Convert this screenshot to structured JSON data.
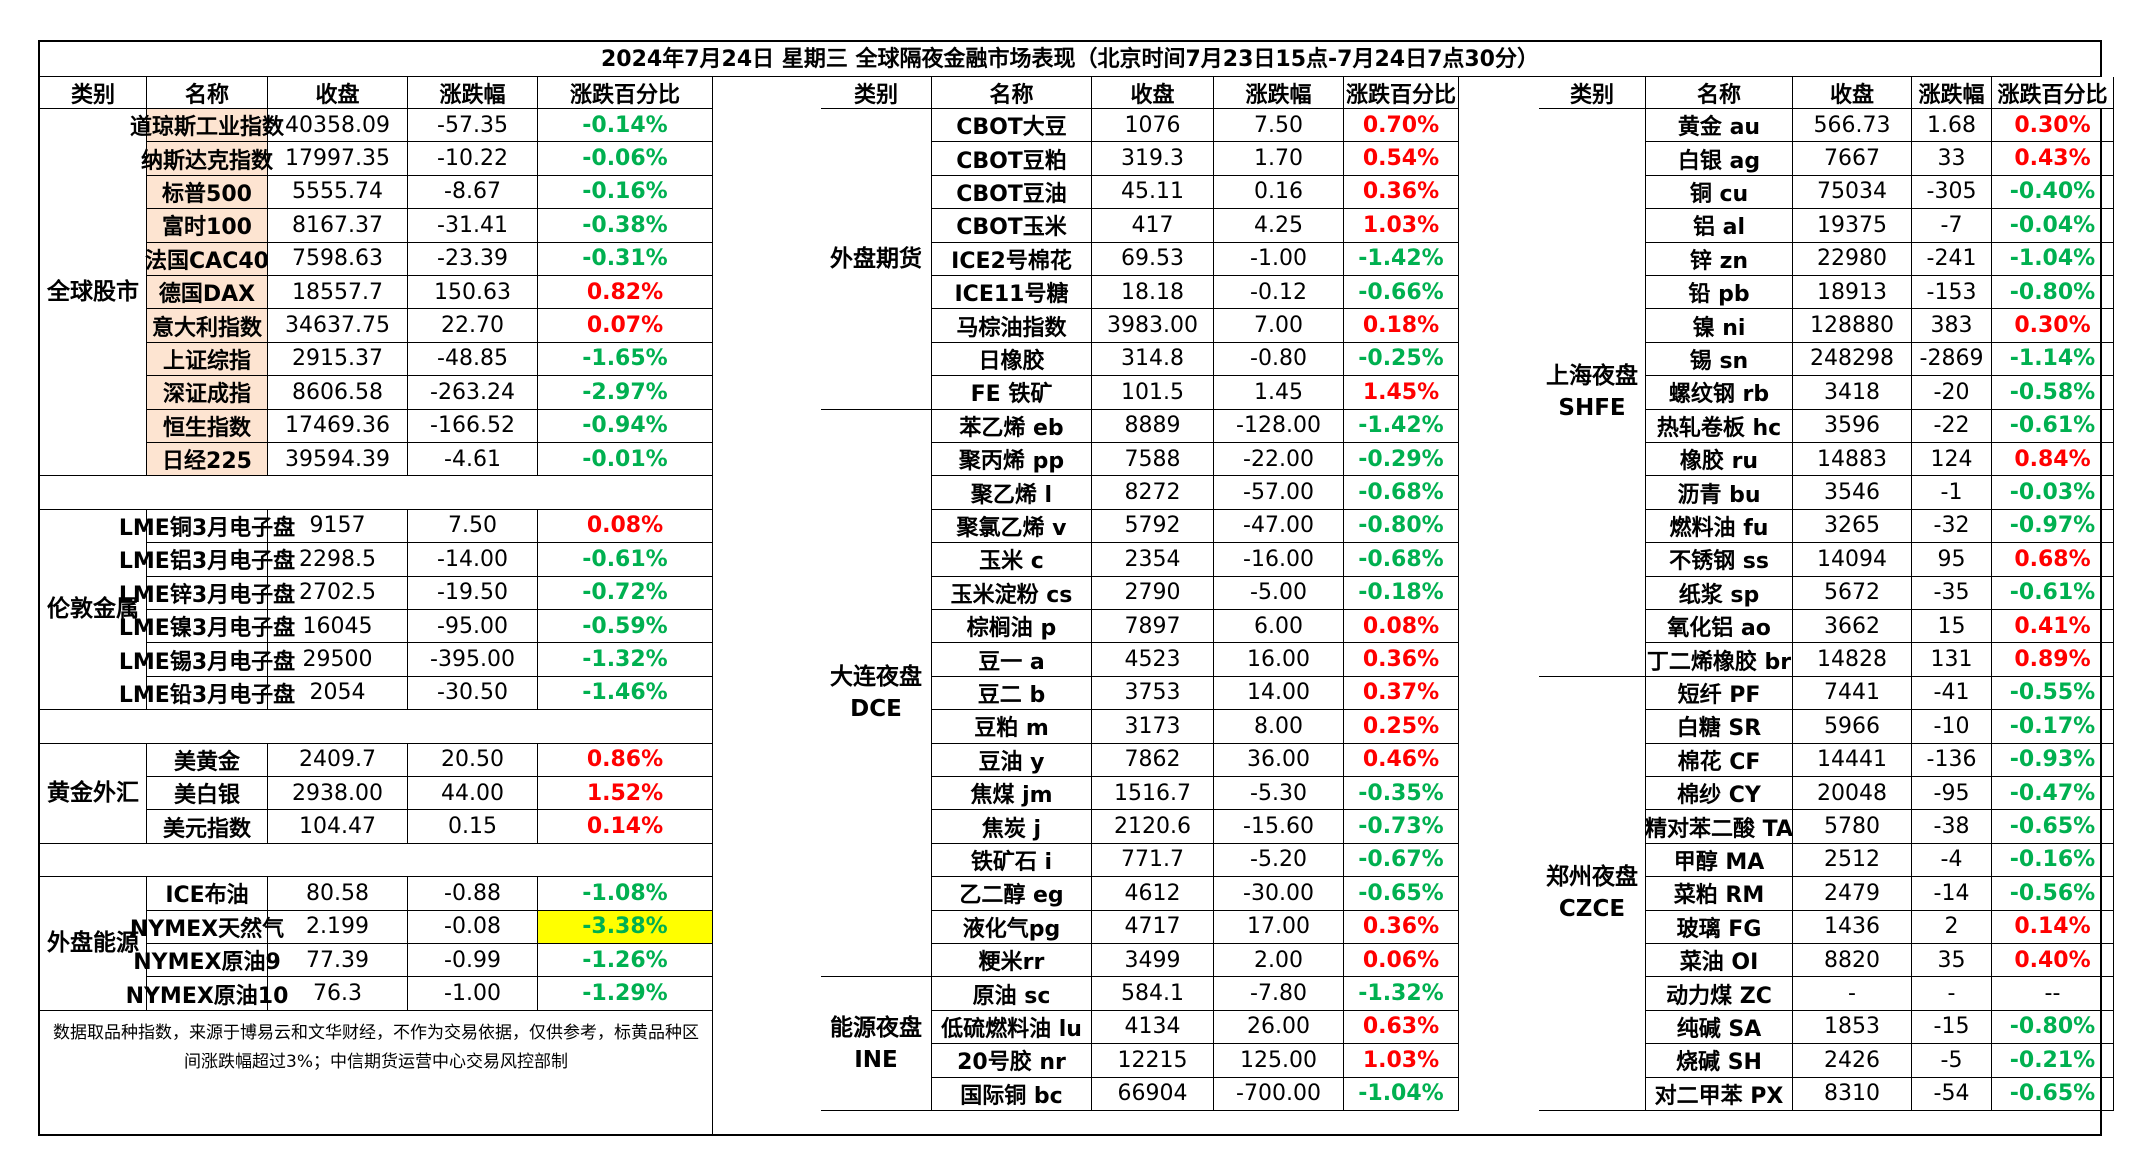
{
  "title": "2024年7月24日 星期三 全球隔夜金融市场表现（北京时间7月23日15点-7月24日7点30分）",
  "headers": [
    "类别",
    "名称",
    "收盘",
    "涨跌幅",
    "涨跌百分比"
  ],
  "colors": {
    "up": "#ff0000",
    "down": "#00b050",
    "highlight": "#ffff00",
    "name_bg": "#fde4d1"
  },
  "note": "数据取品种指数，来源于博易云和文华财经，不作为交易依据，仅供参考，标黄品种区间涨跌幅超过3%；中信期货运营中心交易风控部制",
  "sections": [
    {
      "panel": 0,
      "category": [
        "全球股市"
      ],
      "peach": true,
      "rows": [
        [
          "道琼斯工业指数",
          "40358.09",
          "-57.35",
          "-0.14%"
        ],
        [
          "纳斯达克指数",
          "17997.35",
          "-10.22",
          "-0.06%"
        ],
        [
          "标普500",
          "5555.74",
          "-8.67",
          "-0.16%"
        ],
        [
          "富时100",
          "8167.37",
          "-31.41",
          "-0.38%"
        ],
        [
          "法国CAC40",
          "7598.63",
          "-23.39",
          "-0.31%"
        ],
        [
          "德国DAX",
          "18557.7",
          "150.63",
          "0.82%"
        ],
        [
          "意大利指数",
          "34637.75",
          "22.70",
          "0.07%"
        ],
        [
          "上证综指",
          "2915.37",
          "-48.85",
          "-1.65%"
        ],
        [
          "深证成指",
          "8606.58",
          "-263.24",
          "-2.97%"
        ],
        [
          "恒生指数",
          "17469.36",
          "-166.52",
          "-0.94%"
        ],
        [
          "日经225",
          "39594.39",
          "-4.61",
          "-0.01%"
        ]
      ]
    },
    {
      "panel": 0,
      "category": [
        "伦敦金属"
      ],
      "rows": [
        [
          "LME铜3月电子盘",
          "9157",
          "7.50",
          "0.08%"
        ],
        [
          "LME铝3月电子盘",
          "2298.5",
          "-14.00",
          "-0.61%"
        ],
        [
          "LME锌3月电子盘",
          "2702.5",
          "-19.50",
          "-0.72%"
        ],
        [
          "LME镍3月电子盘",
          "16045",
          "-95.00",
          "-0.59%"
        ],
        [
          "LME锡3月电子盘",
          "29500",
          "-395.00",
          "-1.32%"
        ],
        [
          "LME铅3月电子盘",
          "2054",
          "-30.50",
          "-1.46%"
        ]
      ]
    },
    {
      "panel": 0,
      "category": [
        "黄金外汇"
      ],
      "rows": [
        [
          "美黄金",
          "2409.7",
          "20.50",
          "0.86%"
        ],
        [
          "美白银",
          "2938.00",
          "44.00",
          "1.52%"
        ],
        [
          "美元指数",
          "104.47",
          "0.15",
          "0.14%"
        ]
      ]
    },
    {
      "panel": 0,
      "category": [
        "外盘能源"
      ],
      "rows": [
        [
          "ICE布油",
          "80.58",
          "-0.88",
          "-1.08%"
        ],
        [
          "NYMEX天然气",
          "2.199",
          "-0.08",
          "-3.38%"
        ],
        [
          "NYMEX原油9",
          "77.39",
          "-0.99",
          "-1.26%"
        ],
        [
          "NYMEX原油10",
          "76.3",
          "-1.00",
          "-1.29%"
        ]
      ]
    },
    {
      "panel": 1,
      "category": [
        "外盘期货"
      ],
      "rows": [
        [
          "CBOT大豆",
          "1076",
          "7.50",
          "0.70%"
        ],
        [
          "CBOT豆粕",
          "319.3",
          "1.70",
          "0.54%"
        ],
        [
          "CBOT豆油",
          "45.11",
          "0.16",
          "0.36%"
        ],
        [
          "CBOT玉米",
          "417",
          "4.25",
          "1.03%"
        ],
        [
          "ICE2号棉花",
          "69.53",
          "-1.00",
          "-1.42%"
        ],
        [
          "ICE11号糖",
          "18.18",
          "-0.12",
          "-0.66%"
        ],
        [
          "马棕油指数",
          "3983.00",
          "7.00",
          "0.18%"
        ],
        [
          "日橡胶",
          "314.8",
          "-0.80",
          "-0.25%"
        ],
        [
          "FE 铁矿",
          "101.5",
          "1.45",
          "1.45%"
        ]
      ]
    },
    {
      "panel": 1,
      "category": [
        "大连夜盘",
        "DCE"
      ],
      "rows": [
        [
          "苯乙烯 eb",
          "8889",
          "-128.00",
          "-1.42%"
        ],
        [
          "聚丙烯 pp",
          "7588",
          "-22.00",
          "-0.29%"
        ],
        [
          "聚乙烯 l",
          "8272",
          "-57.00",
          "-0.68%"
        ],
        [
          "聚氯乙烯 v",
          "5792",
          "-47.00",
          "-0.80%"
        ],
        [
          "玉米 c",
          "2354",
          "-16.00",
          "-0.68%"
        ],
        [
          "玉米淀粉 cs",
          "2790",
          "-5.00",
          "-0.18%"
        ],
        [
          "棕榈油 p",
          "7897",
          "6.00",
          "0.08%"
        ],
        [
          "豆一 a",
          "4523",
          "16.00",
          "0.36%"
        ],
        [
          "豆二 b",
          "3753",
          "14.00",
          "0.37%"
        ],
        [
          "豆粕 m",
          "3173",
          "8.00",
          "0.25%"
        ],
        [
          "豆油 y",
          "7862",
          "36.00",
          "0.46%"
        ],
        [
          "焦煤 jm",
          "1516.7",
          "-5.30",
          "-0.35%"
        ],
        [
          "焦炭 j",
          "2120.6",
          "-15.60",
          "-0.73%"
        ],
        [
          "铁矿石 i",
          "771.7",
          "-5.20",
          "-0.67%"
        ],
        [
          "乙二醇 eg",
          "4612",
          "-30.00",
          "-0.65%"
        ],
        [
          "液化气pg",
          "4717",
          "17.00",
          "0.36%"
        ],
        [
          "粳米rr",
          "3499",
          "2.00",
          "0.06%"
        ]
      ]
    },
    {
      "panel": 1,
      "category": [
        "能源夜盘",
        "INE"
      ],
      "rows": [
        [
          "原油 sc",
          "584.1",
          "-7.80",
          "-1.32%"
        ],
        [
          "低硫燃料油 lu",
          "4134",
          "26.00",
          "0.63%"
        ],
        [
          "20号胶 nr",
          "12215",
          "125.00",
          "1.03%"
        ],
        [
          "国际铜 bc",
          "66904",
          "-700.00",
          "-1.04%"
        ]
      ]
    },
    {
      "panel": 2,
      "category": [
        "上海夜盘",
        "SHFE"
      ],
      "rows": [
        [
          "黄金 au",
          "566.73",
          "1.68",
          "0.30%"
        ],
        [
          "白银 ag",
          "7667",
          "33",
          "0.43%"
        ],
        [
          "铜 cu",
          "75034",
          "-305",
          "-0.40%"
        ],
        [
          "铝 al",
          "19375",
          "-7",
          "-0.04%"
        ],
        [
          "锌 zn",
          "22980",
          "-241",
          "-1.04%"
        ],
        [
          "铅 pb",
          "18913",
          "-153",
          "-0.80%"
        ],
        [
          "镍 ni",
          "128880",
          "383",
          "0.30%"
        ],
        [
          "锡 sn",
          "248298",
          "-2869",
          "-1.14%"
        ],
        [
          "螺纹钢 rb",
          "3418",
          "-20",
          "-0.58%"
        ],
        [
          "热轧卷板 hc",
          "3596",
          "-22",
          "-0.61%"
        ],
        [
          "橡胶 ru",
          "14883",
          "124",
          "0.84%"
        ],
        [
          "沥青 bu",
          "3546",
          "-1",
          "-0.03%"
        ],
        [
          "燃料油 fu",
          "3265",
          "-32",
          "-0.97%"
        ],
        [
          "不锈钢 ss",
          "14094",
          "95",
          "0.68%"
        ],
        [
          "纸浆 sp",
          "5672",
          "-35",
          "-0.61%"
        ],
        [
          "氧化铝 ao",
          "3662",
          "15",
          "0.41%"
        ],
        [
          "丁二烯橡胶 br",
          "14828",
          "131",
          "0.89%"
        ]
      ]
    },
    {
      "panel": 2,
      "category": [
        "郑州夜盘",
        "CZCE"
      ],
      "rows": [
        [
          "短纤 PF",
          "7441",
          "-41",
          "-0.55%"
        ],
        [
          "白糖 SR",
          "5966",
          "-10",
          "-0.17%"
        ],
        [
          "棉花 CF",
          "14441",
          "-136",
          "-0.93%"
        ],
        [
          "棉纱 CY",
          "20048",
          "-95",
          "-0.47%"
        ],
        [
          "精对苯二酸 TA",
          "5780",
          "-38",
          "-0.65%"
        ],
        [
          "甲醇 MA",
          "2512",
          "-4",
          "-0.16%"
        ],
        [
          "菜粕 RM",
          "2479",
          "-14",
          "-0.56%"
        ],
        [
          "玻璃 FG",
          "1436",
          "2",
          "0.14%"
        ],
        [
          "菜油 OI",
          "8820",
          "35",
          "0.40%"
        ],
        [
          "动力煤 ZC",
          "-",
          "-",
          "--"
        ],
        [
          "纯碱 SA",
          "1853",
          "-15",
          "-0.80%"
        ],
        [
          "烧碱 SH",
          "2426",
          "-5",
          "-0.21%"
        ],
        [
          "对二甲苯 PX",
          "8310",
          "-54",
          "-0.65%"
        ]
      ]
    }
  ]
}
